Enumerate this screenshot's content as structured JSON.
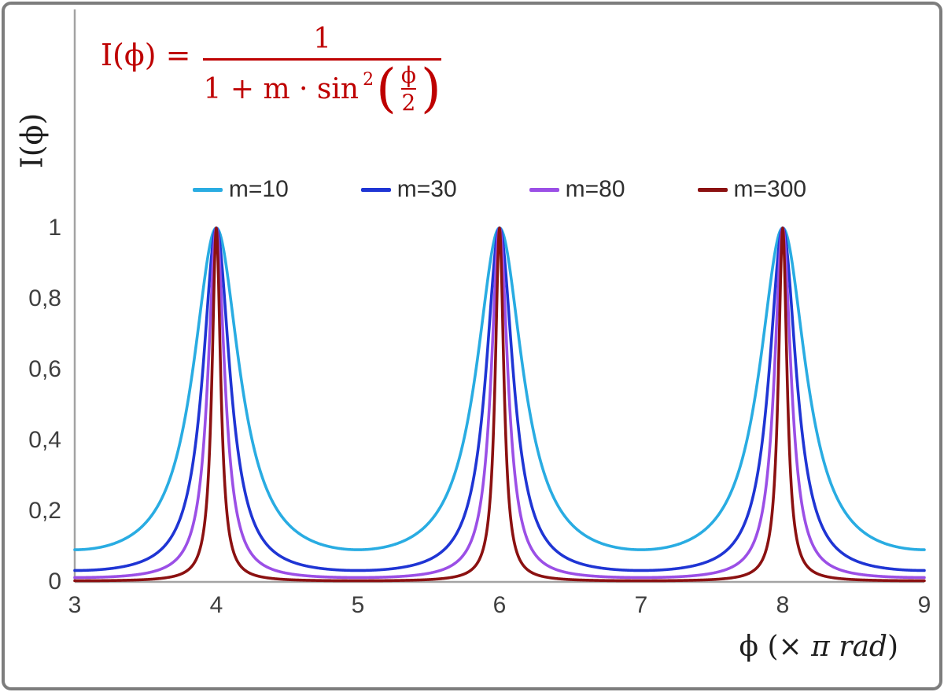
{
  "frame": {
    "border_color": "#7d7d7d",
    "background": "#ffffff"
  },
  "formula": {
    "color": "#be0000",
    "lhs": "I(ϕ) =",
    "numerator": "1",
    "denominator_prefix": "1 + m · sin",
    "denominator_exponent": "2",
    "paren_open": "(",
    "paren_close": ")",
    "inner_fraction": {
      "numerator": "ϕ",
      "denominator": "2"
    }
  },
  "axes": {
    "x_title_parts": {
      "pre": "ϕ  (× ",
      "italic": "π rad",
      "post": ")"
    },
    "y_title": "I(ϕ)",
    "x_tick_labels": [
      "3",
      "4",
      "5",
      "6",
      "7",
      "8",
      "9"
    ],
    "y_tick_labels": [
      "0",
      "0,2",
      "0,4",
      "0,6",
      "0,8",
      "1"
    ],
    "tick_color": "#3f3f3f",
    "axis_line_color": "#a3a3a3"
  },
  "chart_data": {
    "type": "line",
    "title": "",
    "xlabel": "ϕ (× π rad)",
    "ylabel": "I(ϕ)",
    "x_range": [
      3,
      9
    ],
    "y_range": [
      0,
      1.6
    ],
    "x_ticks": [
      3,
      4,
      5,
      6,
      7,
      8,
      9
    ],
    "y_ticks": [
      0,
      0.2,
      0.4,
      0.6,
      0.8,
      1
    ],
    "decimal_separator": ",",
    "grid": false,
    "legend_position": "top-center-horizontal",
    "model": "I(phi) = 1 / (1 + m * sin^2(phi * PI / 2)), phi measured in units of pi rad",
    "series": [
      {
        "name": "m=10",
        "m": 10,
        "color": "#29ace2"
      },
      {
        "name": "m=30",
        "m": 30,
        "color": "#1f35d4"
      },
      {
        "name": "m=80",
        "m": 80,
        "color": "#9b4fe6"
      },
      {
        "name": "m=300",
        "m": 300,
        "color": "#8b1111"
      }
    ],
    "peak_positions_x": [
      4,
      6,
      8
    ],
    "peak_value": 1
  }
}
